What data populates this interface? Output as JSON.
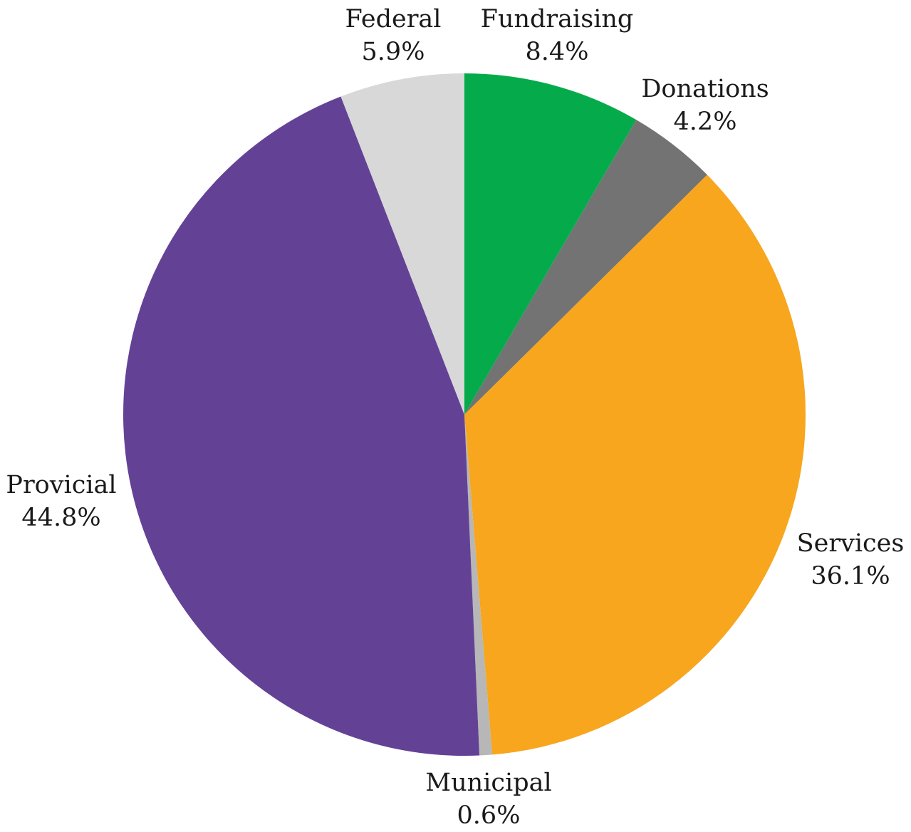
{
  "chart_data": {
    "type": "pie",
    "title": "",
    "start_angle_deg": 0,
    "direction": "clockwise",
    "slices": [
      {
        "label": "Fundraising",
        "value": 8.4,
        "value_label": "8.4%",
        "color": "#05ab4a"
      },
      {
        "label": "Donations",
        "value": 4.2,
        "value_label": "4.2%",
        "color": "#737373"
      },
      {
        "label": "Services",
        "value": 36.1,
        "value_label": "36.1%",
        "color": "#f7a61e"
      },
      {
        "label": "Municipal",
        "value": 0.6,
        "value_label": "0.6%",
        "color": "#b7b7b7"
      },
      {
        "label": "Provicial",
        "value": 44.8,
        "value_label": "44.8%",
        "color": "#634296"
      },
      {
        "label": "Federal",
        "value": 5.9,
        "value_label": "5.9%",
        "color": "#d8d8d8"
      }
    ]
  }
}
